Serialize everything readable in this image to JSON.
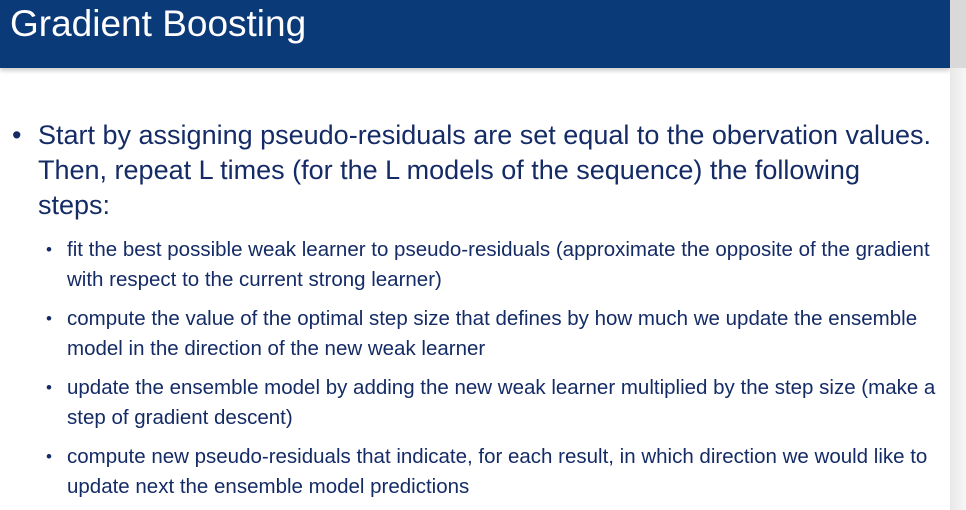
{
  "slide": {
    "title": "Gradient Boosting",
    "bullet_main": "Start by assigning pseudo-residuals are set equal to the obervation values.  Then, repeat L times (for the L models of the sequence) the following steps:",
    "sub_bullets": [
      "fit the best possible weak learner to pseudo-residuals (approximate the opposite of the gradient with respect to the current strong learner)",
      "compute the value of the optimal step size that defines by how much we update the ensemble model in the direction of the new weak learner",
      "update the ensemble model by adding the new weak learner multiplied by the step size (make a step of gradient descent)",
      "compute new pseudo-residuals that indicate, for each result, in which direction we would like to update next the ensemble model predictions"
    ],
    "bullet_glyph": "•"
  },
  "colors": {
    "title_bar": "#0b3a78",
    "title_text": "#ffffff",
    "body_text": "#142b66"
  }
}
